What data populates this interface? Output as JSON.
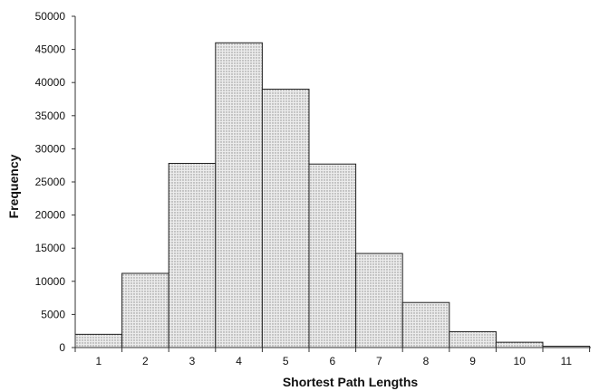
{
  "chart_data": {
    "type": "bar",
    "title": "",
    "xlabel": "Shortest Path Lengths",
    "ylabel": "Frequency",
    "categories": [
      "1",
      "2",
      "3",
      "4",
      "5",
      "6",
      "7",
      "8",
      "9",
      "10",
      "11"
    ],
    "values": [
      2000,
      11200,
      27800,
      46000,
      39000,
      27700,
      14200,
      6800,
      2400,
      800,
      200
    ],
    "ylim": [
      0,
      50000
    ],
    "yticks": [
      "0",
      "5000",
      "10000",
      "15000",
      "20000",
      "25000",
      "30000",
      "35000",
      "40000",
      "45000",
      "50000"
    ],
    "grid": false,
    "legend": "none",
    "bar_fill": "#e6e6e6",
    "bar_stroke": "#222222",
    "bar_texture": "dotted"
  }
}
